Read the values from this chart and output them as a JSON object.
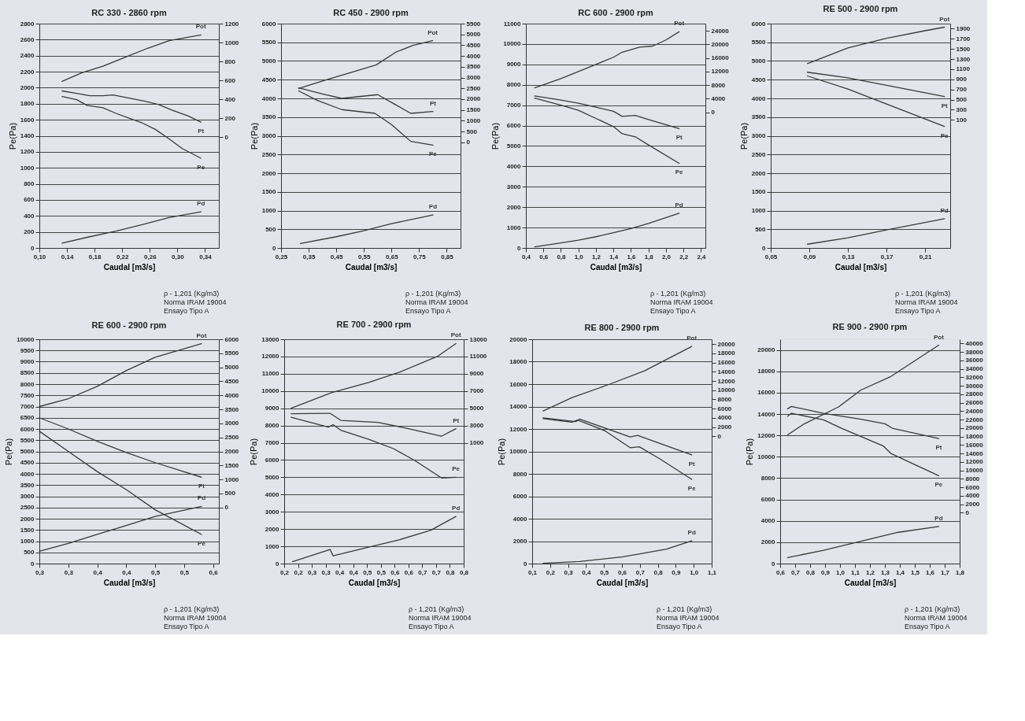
{
  "chart_data": [
    {
      "type": "line",
      "title": "RC 330 - 2860 rpm",
      "xlabel": "Caudal [m3/s]",
      "ylabel": "Pe(Pa)",
      "grid": "y",
      "xlim": [
        0.1,
        0.36
      ],
      "xticks": [
        {
          "value": 0.1,
          "label": "0,10"
        },
        {
          "value": 0.14,
          "label": "0,14"
        },
        {
          "value": 0.18,
          "label": "0,18"
        },
        {
          "value": 0.22,
          "label": "0,22"
        },
        {
          "value": 0.26,
          "label": "0,26"
        },
        {
          "value": 0.3,
          "label": "0,30"
        },
        {
          "value": 0.34,
          "label": "0,34"
        }
      ],
      "ylim": [
        0,
        2800
      ],
      "yticks": [
        0,
        200,
        400,
        600,
        800,
        1000,
        1200,
        1400,
        1600,
        1800,
        2000,
        2200,
        2400,
        2600,
        2800
      ],
      "y2lim": [
        -1170,
        1200
      ],
      "y2ticks": [
        0,
        200,
        400,
        600,
        800,
        1000,
        1200
      ],
      "series": [
        {
          "name": "Pot",
          "color": "#3a3a3a",
          "axis": "y2",
          "x": [
            0.133,
            0.161,
            0.192,
            0.226,
            0.257,
            0.288,
            0.334
          ],
          "values": [
            590,
            680,
            750,
            850,
            940,
            1020,
            1080
          ]
        },
        {
          "name": "Pt",
          "color": "#3a3a3a",
          "x": [
            0.133,
            0.154,
            0.173,
            0.192,
            0.207,
            0.23,
            0.253,
            0.273,
            0.292,
            0.315,
            0.334
          ],
          "values": [
            1960,
            1930,
            1900,
            1900,
            1910,
            1870,
            1830,
            1790,
            1720,
            1650,
            1570
          ]
        },
        {
          "name": "Pe",
          "color": "#3a3a3a",
          "x": [
            0.133,
            0.154,
            0.169,
            0.192,
            0.211,
            0.23,
            0.249,
            0.268,
            0.288,
            0.307,
            0.334
          ],
          "values": [
            1890,
            1850,
            1780,
            1750,
            1680,
            1620,
            1560,
            1480,
            1360,
            1240,
            1120
          ]
        },
        {
          "name": "Pd",
          "color": "#3a3a3a",
          "x": [
            0.133,
            0.173,
            0.211,
            0.249,
            0.288,
            0.334
          ],
          "values": [
            60,
            140,
            210,
            290,
            380,
            450
          ]
        }
      ],
      "annotations": [
        "ρ - 1,201 (Kg/m3)",
        "Norma IRAM 19004",
        "Ensayo Tipo A"
      ]
    },
    {
      "type": "line",
      "title": "RC 450 - 2900 rpm",
      "xlabel": "Caudal [m3/s]",
      "ylabel": "Pe(Pa)",
      "grid": "y",
      "xlim": [
        0.25,
        0.9
      ],
      "xticks": [
        {
          "value": 0.25,
          "label": "0,25"
        },
        {
          "value": 0.35,
          "label": "0,35"
        },
        {
          "value": 0.45,
          "label": "0,45"
        },
        {
          "value": 0.55,
          "label": "0,55"
        },
        {
          "value": 0.65,
          "label": "0,65"
        },
        {
          "value": 0.75,
          "label": "0,75"
        },
        {
          "value": 0.85,
          "label": "0,85"
        }
      ],
      "ylim": [
        0,
        6000
      ],
      "yticks": [
        0,
        500,
        1000,
        1500,
        2000,
        2500,
        3000,
        3500,
        4000,
        4500,
        5000,
        5500,
        6000
      ],
      "y2lim": [
        -4900,
        5500
      ],
      "y2ticks": [
        0,
        500,
        1000,
        1500,
        2000,
        2500,
        3000,
        3500,
        4000,
        4500,
        5000,
        5500
      ],
      "series": [
        {
          "name": "Pot",
          "color": "#3a3a3a",
          "axis": "y2",
          "x": [
            0.314,
            0.421,
            0.503,
            0.595,
            0.666,
            0.728,
            0.799
          ],
          "values": [
            2490,
            2920,
            3230,
            3590,
            4180,
            4490,
            4710
          ]
        },
        {
          "name": "Pt",
          "color": "#3a3a3a",
          "x": [
            0.314,
            0.4,
            0.47,
            0.6,
            0.66,
            0.72,
            0.8
          ],
          "values": [
            4280,
            4120,
            4000,
            4100,
            3850,
            3600,
            3650
          ]
        },
        {
          "name": "Pe",
          "color": "#3a3a3a",
          "x": [
            0.314,
            0.38,
            0.47,
            0.59,
            0.65,
            0.72,
            0.8
          ],
          "values": [
            4200,
            3950,
            3700,
            3600,
            3300,
            2850,
            2750
          ]
        },
        {
          "name": "Pd",
          "color": "#3a3a3a",
          "x": [
            0.32,
            0.45,
            0.55,
            0.65,
            0.8
          ],
          "values": [
            120,
            300,
            460,
            650,
            880
          ]
        }
      ],
      "annotations": [
        "ρ - 1,201 (Kg/m3)",
        "Norma IRAM 19004",
        "Ensayo Tipo A"
      ]
    },
    {
      "type": "line",
      "title": "RC 600 - 2900 rpm",
      "xlabel": "Caudal [m3/s]",
      "ylabel": "Pe(Pa)",
      "grid": "y",
      "xlim": [
        0.4,
        2.45
      ],
      "xticks": [
        {
          "value": 0.4,
          "label": "0,4"
        },
        {
          "value": 0.6,
          "label": "0,6"
        },
        {
          "value": 0.8,
          "label": "0,8"
        },
        {
          "value": 1.0,
          "label": "1,0"
        },
        {
          "value": 1.2,
          "label": "1,2"
        },
        {
          "value": 1.4,
          "label": "1,4"
        },
        {
          "value": 1.6,
          "label": "1,6"
        },
        {
          "value": 1.8,
          "label": "1,8"
        },
        {
          "value": 2.0,
          "label": "2,0"
        },
        {
          "value": 2.2,
          "label": "2,2"
        },
        {
          "value": 2.4,
          "label": "2,4"
        }
      ],
      "ylim": [
        0,
        11000
      ],
      "yticks": [
        0,
        1000,
        2000,
        3000,
        4000,
        5000,
        6000,
        7000,
        8000,
        9000,
        10000,
        11000
      ],
      "y2lim": [
        -39900,
        26100
      ],
      "y2ticks": [
        0,
        4000,
        8000,
        12000,
        16000,
        20000,
        24000
      ],
      "series": [
        {
          "name": "Pot",
          "color": "#3a3a3a",
          "axis": "y2",
          "x": [
            0.5,
            0.8,
            1.0,
            1.2,
            1.4,
            1.5,
            1.7,
            1.85,
            2.0,
            2.15
          ],
          "values": [
            7200,
            9900,
            12000,
            14100,
            16200,
            17700,
            19200,
            19500,
            21300,
            23700
          ]
        },
        {
          "name": "Pt",
          "color": "#3a3a3a",
          "x": [
            0.5,
            0.8,
            1.0,
            1.2,
            1.4,
            1.5,
            1.65,
            1.8,
            2.15
          ],
          "values": [
            7450,
            7250,
            7100,
            6900,
            6700,
            6450,
            6500,
            6300,
            5850
          ]
        },
        {
          "name": "Pe",
          "color": "#3a3a3a",
          "x": [
            0.5,
            0.8,
            1.0,
            1.2,
            1.4,
            1.5,
            1.65,
            1.8,
            2.15
          ],
          "values": [
            7350,
            7000,
            6750,
            6350,
            5950,
            5600,
            5450,
            5050,
            4150
          ]
        },
        {
          "name": "Pd",
          "color": "#3a3a3a",
          "x": [
            0.5,
            0.8,
            1.0,
            1.2,
            1.4,
            1.6,
            1.8,
            2.15
          ],
          "values": [
            50,
            250,
            380,
            550,
            750,
            950,
            1200,
            1700
          ]
        }
      ],
      "annotations": [
        "ρ - 1,201 (Kg/m3)",
        "Norma IRAM 19004",
        "Ensayo Tipo A"
      ]
    },
    {
      "type": "line",
      "title": "RE 500 - 2900 rpm",
      "xlabel": "Caudal [m3/s]",
      "ylabel": "Pe(Pa)",
      "grid": "y",
      "xlim": [
        0.05,
        0.236
      ],
      "xticks": [
        {
          "value": 0.05,
          "label": "0,05"
        },
        {
          "value": 0.09,
          "label": "0,09"
        },
        {
          "value": 0.13,
          "label": "0,13"
        },
        {
          "value": 0.17,
          "label": "0,17"
        },
        {
          "value": 0.21,
          "label": "0,21"
        }
      ],
      "ylim": [
        0,
        6000
      ],
      "yticks": [
        0,
        500,
        1000,
        1500,
        2000,
        2500,
        3000,
        3500,
        4000,
        4500,
        5000,
        5500,
        6000
      ],
      "y2lim": [
        -2430,
        2000
      ],
      "y2ticks": [
        100,
        300,
        500,
        700,
        900,
        1100,
        1300,
        1500,
        1700,
        1900
      ],
      "series": [
        {
          "name": "Pot",
          "color": "#3a3a3a",
          "axis": "y2",
          "x": [
            0.088,
            0.13,
            0.17,
            0.21,
            0.23
          ],
          "values": [
            1210,
            1520,
            1710,
            1860,
            1930
          ]
        },
        {
          "name": "Pt",
          "color": "#3a3a3a",
          "x": [
            0.088,
            0.13,
            0.17,
            0.23
          ],
          "values": [
            4700,
            4550,
            4350,
            4050
          ]
        },
        {
          "name": "Pe",
          "color": "#3a3a3a",
          "x": [
            0.088,
            0.13,
            0.17,
            0.21,
            0.23
          ],
          "values": [
            4600,
            4250,
            3850,
            3450,
            3250
          ]
        },
        {
          "name": "Pd",
          "color": "#3a3a3a",
          "x": [
            0.088,
            0.13,
            0.17,
            0.23
          ],
          "values": [
            100,
            270,
            480,
            780
          ]
        }
      ],
      "annotations": [
        "ρ - 1,201 (Kg/m3)",
        "Norma IRAM 19004",
        "Ensayo Tipo A"
      ]
    },
    {
      "type": "line",
      "title": "RE 600 - 2900 rpm",
      "xlabel": "Caudal [m3/s]",
      "ylabel": "Pe(Pa)",
      "grid": "y",
      "xlim": [
        0.3,
        0.61
      ],
      "xticks": [
        {
          "value": 0.3,
          "label": "0,3"
        },
        {
          "value": 0.35,
          "label": "0,3"
        },
        {
          "value": 0.4,
          "label": "0,4"
        },
        {
          "value": 0.45,
          "label": "0,4"
        },
        {
          "value": 0.5,
          "label": "0,5"
        },
        {
          "value": 0.55,
          "label": "0,5"
        },
        {
          "value": 0.6,
          "label": "0,6"
        }
      ],
      "ylim": [
        0,
        10000
      ],
      "yticks": [
        0,
        500,
        1000,
        1500,
        2000,
        2500,
        3000,
        3500,
        4000,
        4500,
        5000,
        5500,
        6000,
        6500,
        7000,
        7500,
        8000,
        8500,
        9000,
        9500,
        10000
      ],
      "y2lim": [
        -2000,
        6000
      ],
      "y2ticks": [
        0,
        500,
        1000,
        1500,
        2000,
        2500,
        3000,
        3500,
        4000,
        4500,
        5000,
        5500,
        6000
      ],
      "series": [
        {
          "name": "Pot",
          "color": "#3a3a3a",
          "axis": "y2",
          "x": [
            0.3,
            0.35,
            0.4,
            0.45,
            0.5,
            0.58
          ],
          "values": [
            3600,
            3880,
            4320,
            4880,
            5360,
            5840
          ]
        },
        {
          "name": "Pt",
          "color": "#3a3a3a",
          "x": [
            0.3,
            0.35,
            0.4,
            0.45,
            0.5,
            0.58
          ],
          "values": [
            6500,
            6000,
            5450,
            4950,
            4500,
            3850
          ]
        },
        {
          "name": "Pe",
          "color": "#3a3a3a",
          "x": [
            0.3,
            0.35,
            0.4,
            0.45,
            0.5,
            0.58
          ],
          "values": [
            5900,
            5000,
            4100,
            3300,
            2400,
            1300
          ]
        },
        {
          "name": "Pd",
          "color": "#3a3a3a",
          "x": [
            0.3,
            0.35,
            0.4,
            0.45,
            0.5,
            0.58
          ],
          "values": [
            550,
            900,
            1300,
            1700,
            2100,
            2550
          ]
        }
      ],
      "annotations": [
        "ρ - 1,201 (Kg/m3)",
        "Norma IRAM 19004",
        "Ensayo Tipo A"
      ]
    },
    {
      "type": "line",
      "title": "RE 700 - 2900 rpm",
      "xlabel": "Caudal [m3/s]",
      "ylabel": "Pe(Pa)",
      "grid": "y",
      "xlim": [
        0.15,
        0.8
      ],
      "xticks": [
        {
          "value": 0.15,
          "label": "0,2"
        },
        {
          "value": 0.2,
          "label": "0,2"
        },
        {
          "value": 0.25,
          "label": "0,3"
        },
        {
          "value": 0.3,
          "label": "0,3"
        },
        {
          "value": 0.35,
          "label": "0,4"
        },
        {
          "value": 0.4,
          "label": "0,4"
        },
        {
          "value": 0.45,
          "label": "0,5"
        },
        {
          "value": 0.5,
          "label": "0,5"
        },
        {
          "value": 0.55,
          "label": "0,6"
        },
        {
          "value": 0.6,
          "label": "0,6"
        },
        {
          "value": 0.65,
          "label": "0,7"
        },
        {
          "value": 0.7,
          "label": "0,7"
        },
        {
          "value": 0.75,
          "label": "0,8"
        },
        {
          "value": 0.8,
          "label": "0,8"
        }
      ],
      "ylim": [
        0,
        13000
      ],
      "yticks": [
        0,
        1000,
        2000,
        3000,
        4000,
        5000,
        6000,
        7000,
        8000,
        9000,
        10000,
        11000,
        12000,
        13000
      ],
      "y2lim": [
        -13000,
        13000
      ],
      "y2ticks": [
        1000,
        3000,
        5000,
        7000,
        9000,
        11000,
        13000
      ],
      "series": [
        {
          "name": "Pot",
          "color": "#3a3a3a",
          "axis": "y2",
          "x": [
            0.175,
            0.321,
            0.456,
            0.569,
            0.704,
            0.772
          ],
          "values": [
            5000,
            6800,
            8000,
            9200,
            11000,
            12500
          ]
        },
        {
          "name": "Pt",
          "color": "#3a3a3a",
          "x": [
            0.175,
            0.316,
            0.355,
            0.49,
            0.6,
            0.719,
            0.772
          ],
          "values": [
            8680,
            8710,
            8300,
            8180,
            7820,
            7380,
            7820
          ]
        },
        {
          "name": "Pe",
          "color": "#3a3a3a",
          "x": [
            0.175,
            0.31,
            0.327,
            0.355,
            0.456,
            0.546,
            0.625,
            0.72,
            0.772
          ],
          "values": [
            8480,
            7910,
            8050,
            7730,
            7200,
            6660,
            5950,
            4960,
            5000
          ]
        },
        {
          "name": "Pd",
          "color": "#3a3a3a",
          "x": [
            0.18,
            0.316,
            0.327,
            0.456,
            0.569,
            0.681,
            0.772
          ],
          "values": [
            110,
            820,
            450,
            950,
            1390,
            1930,
            2730
          ]
        }
      ],
      "annotations": [
        "ρ - 1,201 (Kg/m3)",
        "Norma IRAM 19004",
        "Ensayo Tipo A"
      ]
    },
    {
      "type": "line",
      "title": "RE 800 - 2900 rpm",
      "xlabel": "Caudal [m3/s]",
      "ylabel": "Pe(Pa)",
      "grid": "y",
      "xlim": [
        0.1,
        1.1
      ],
      "xticks": [
        {
          "value": 0.1,
          "label": "0,1"
        },
        {
          "value": 0.2,
          "label": "0,2"
        },
        {
          "value": 0.3,
          "label": "0,3"
        },
        {
          "value": 0.4,
          "label": "0,4"
        },
        {
          "value": 0.5,
          "label": "0,5"
        },
        {
          "value": 0.6,
          "label": "0,6"
        },
        {
          "value": 0.7,
          "label": "0,7"
        },
        {
          "value": 0.8,
          "label": "0,8"
        },
        {
          "value": 0.9,
          "label": "0,9"
        },
        {
          "value": 1.0,
          "label": "1,0"
        },
        {
          "value": 1.1,
          "label": "1,1"
        }
      ],
      "ylim": [
        0,
        20000
      ],
      "yticks": [
        0,
        2000,
        4000,
        6000,
        8000,
        10000,
        12000,
        14000,
        16000,
        18000,
        20000
      ],
      "y2lim": [
        -27600,
        21060
      ],
      "y2ticks": [
        0,
        2000,
        4000,
        6000,
        8000,
        10000,
        12000,
        14000,
        16000,
        18000,
        20000
      ],
      "series": [
        {
          "name": "Pot",
          "color": "#3a3a3a",
          "axis": "y2",
          "x": [
            0.161,
            0.322,
            0.524,
            0.726,
            0.989
          ],
          "values": [
            5500,
            8400,
            11200,
            14200,
            19500
          ]
        },
        {
          "name": "Pt",
          "color": "#3a3a3a",
          "x": [
            0.161,
            0.343,
            0.364,
            0.646,
            0.687,
            0.989
          ],
          "values": [
            12990,
            12660,
            12880,
            11290,
            11430,
            9700
          ]
        },
        {
          "name": "Pe",
          "color": "#3a3a3a",
          "x": [
            0.161,
            0.322,
            0.353,
            0.505,
            0.646,
            0.697,
            0.808,
            0.989
          ],
          "values": [
            12930,
            12600,
            12800,
            11840,
            10330,
            10410,
            9370,
            7510
          ]
        },
        {
          "name": "Pd",
          "color": "#3a3a3a",
          "x": [
            0.161,
            0.364,
            0.606,
            0.707,
            0.848,
            0.989
          ],
          "values": [
            20,
            190,
            600,
            880,
            1290,
            2030
          ]
        }
      ],
      "annotations": [
        "ρ - 1,201 (Kg/m3)",
        "Norma IRAM 19004",
        "Ensayo Tipo A"
      ]
    },
    {
      "type": "line",
      "title": "RE 900 - 2900 rpm",
      "xlabel": "Caudal [m3/s]",
      "ylabel": "Pe(Pa)",
      "grid": "y",
      "xlim": [
        0.6,
        1.8
      ],
      "xticks": [
        {
          "value": 0.6,
          "label": "0,6"
        },
        {
          "value": 0.7,
          "label": "0,7"
        },
        {
          "value": 0.8,
          "label": "0,8"
        },
        {
          "value": 0.9,
          "label": "0,9"
        },
        {
          "value": 1.0,
          "label": "1,0"
        },
        {
          "value": 1.1,
          "label": "1,1"
        },
        {
          "value": 1.2,
          "label": "1,2"
        },
        {
          "value": 1.3,
          "label": "1,3"
        },
        {
          "value": 1.4,
          "label": "1,4"
        },
        {
          "value": 1.5,
          "label": "1,5"
        },
        {
          "value": 1.6,
          "label": "1,6"
        },
        {
          "value": 1.7,
          "label": "1,7"
        },
        {
          "value": 1.8,
          "label": "1,8"
        }
      ],
      "ylim": [
        0,
        21000
      ],
      "yticks": [
        0,
        2000,
        4000,
        6000,
        8000,
        10000,
        12000,
        14000,
        16000,
        18000,
        20000
      ],
      "y2lim": [
        -12000,
        41000
      ],
      "y2ticks": [
        0,
        2000,
        4000,
        6000,
        8000,
        10000,
        12000,
        14000,
        16000,
        18000,
        20000,
        22000,
        24000,
        26000,
        28000,
        30000,
        32000,
        34000,
        36000,
        38000,
        40000
      ],
      "series": [
        {
          "name": "Pot",
          "color": "#3a3a3a",
          "axis": "y2",
          "x": [
            0.65,
            0.76,
            0.99,
            1.14,
            1.34,
            1.66
          ],
          "values": [
            18400,
            21000,
            25000,
            29000,
            32200,
            39600
          ]
        },
        {
          "name": "Pt",
          "color": "#3a3a3a",
          "x": [
            0.65,
            0.675,
            0.89,
            1.14,
            1.3,
            1.35,
            1.66
          ],
          "values": [
            14490,
            14710,
            14070,
            13510,
            13090,
            12670,
            11700
          ]
        },
        {
          "name": "Pe",
          "color": "#3a3a3a",
          "x": [
            0.65,
            0.675,
            0.89,
            1.01,
            1.29,
            1.34,
            1.66
          ],
          "values": [
            13790,
            14070,
            13450,
            12670,
            11000,
            10310,
            8220
          ]
        },
        {
          "name": "Pd",
          "color": "#3a3a3a",
          "x": [
            0.65,
            0.89,
            1.14,
            1.39,
            1.66
          ],
          "values": [
            560,
            1250,
            2090,
            2930,
            3480
          ]
        }
      ],
      "annotations": [
        "ρ - 1,201 (Kg/m3)",
        "Norma IRAM 19004",
        "Ensayo Tipo A"
      ]
    }
  ]
}
